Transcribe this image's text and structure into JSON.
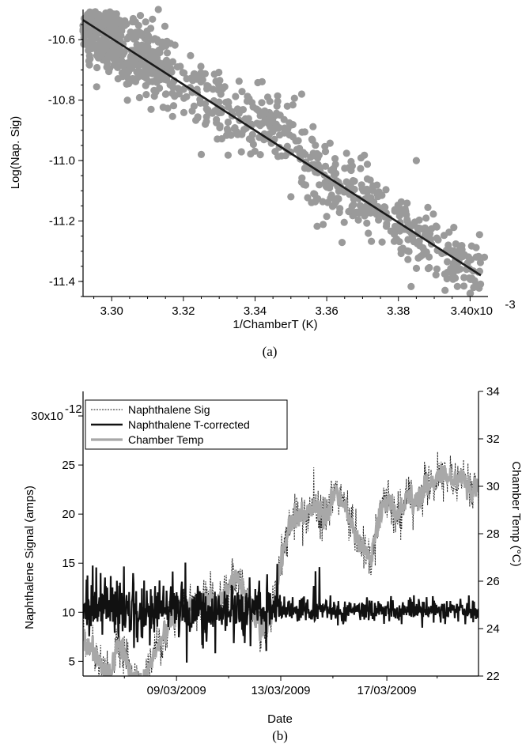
{
  "colors": {
    "scatter": "#9a9a9a",
    "fit": "#1a1a1a",
    "sig": "#222222",
    "tcorr": "#111111",
    "temp": "#a8a8a8"
  },
  "chart_data": [
    {
      "type": "scatter",
      "caption": "(a)",
      "xlabel": "1/ChamberT (K)",
      "ylabel": "Log(Nap. Sig)",
      "xlim": [
        3.292,
        3.405
      ],
      "ylim": [
        -11.45,
        -10.5
      ],
      "x_ticks": [
        3.3,
        3.32,
        3.34,
        3.36,
        3.38,
        3.4
      ],
      "x_tick_labels": [
        "3.30",
        "3.32",
        "3.34",
        "3.36",
        "3.38",
        "3.40x10"
      ],
      "x_multiplier_exp": "-3",
      "y_ticks": [
        -10.6,
        -10.8,
        -11.0,
        -11.2,
        -11.4
      ],
      "y_tick_labels": [
        "-10.6",
        "-10.8",
        "-11.0",
        "-11.2",
        "-11.4"
      ],
      "fit": {
        "x": [
          3.292,
          3.403
        ],
        "y": [
          -10.535,
          -11.38
        ]
      },
      "scatter_band": {
        "x_range": [
          3.292,
          3.403
        ],
        "n": 950,
        "spread": 0.06
      },
      "points": [
        [
          3.308,
          -10.52
        ],
        [
          3.313,
          -10.5
        ],
        [
          3.306,
          -10.53
        ],
        [
          3.349,
          -10.82
        ],
        [
          3.353,
          -10.78
        ],
        [
          3.347,
          -10.85
        ],
        [
          3.385,
          -11.0
        ],
        [
          3.376,
          -11.16
        ],
        [
          3.399,
          -11.36
        ],
        [
          3.4,
          -11.44
        ],
        [
          3.401,
          -11.42
        ],
        [
          3.339,
          -10.88
        ],
        [
          3.325,
          -10.98
        ],
        [
          3.404,
          -11.32
        ],
        [
          3.35,
          -11.12
        ]
      ]
    },
    {
      "type": "line",
      "caption": "(b)",
      "xlabel": "Date",
      "ylabel_left": "Naphthalene Signal (amps)",
      "ylabel_right": "Chamber Temp (°C)",
      "xlim": [
        0,
        22
      ],
      "x_ticks": [
        5.2,
        11.0,
        16.9
      ],
      "x_tick_labels": [
        "09/03/2009",
        "13/03/2009",
        "17/03/2009"
      ],
      "y_left_lim": [
        3.5,
        32.5
      ],
      "y_left_ticks": [
        5,
        10,
        15,
        20,
        25,
        30
      ],
      "y_left_tick_labels": [
        "5",
        "10",
        "15",
        "20",
        "25",
        "30x10"
      ],
      "y_left_multiplier_exp": "-12",
      "y_right_lim": [
        22,
        34
      ],
      "y_right_ticks": [
        22,
        24,
        26,
        28,
        30,
        32,
        34
      ],
      "y_right_tick_labels": [
        "22",
        "24",
        "26",
        "28",
        "30",
        "32",
        "34"
      ],
      "legend": [
        {
          "label": "Naphthalene Sig",
          "style": "dotted"
        },
        {
          "label": "Naphthalene T-corrected",
          "style": "solid-black"
        },
        {
          "label": "Chamber Temp",
          "style": "solid-gray"
        }
      ],
      "temp_profile": {
        "x": [
          0,
          0.5,
          1.0,
          1.5,
          2.0,
          2.5,
          3.0,
          3.5,
          4.0,
          4.5,
          5.0,
          5.5,
          6.0,
          6.5,
          7.0,
          7.5,
          8.0,
          8.5,
          9.0,
          9.5,
          10.0,
          10.5,
          11.0,
          11.5,
          12.0,
          12.5,
          13.0,
          13.5,
          14.0,
          14.5,
          15.0,
          15.5,
          16.0,
          16.5,
          17.0,
          17.5,
          18.0,
          18.5,
          19.0,
          19.5,
          20.0,
          20.5,
          21.0,
          21.5,
          22.0
        ],
        "y": [
          23.8,
          23.2,
          22.3,
          22.0,
          23.5,
          22.5,
          21.8,
          22.0,
          23.0,
          23.8,
          24.3,
          24.8,
          25.0,
          24.9,
          25.3,
          25.0,
          25.8,
          26.2,
          25.5,
          24.5,
          24.0,
          24.6,
          26.5,
          28.4,
          28.7,
          28.9,
          29.1,
          28.6,
          29.8,
          29.3,
          28.2,
          27.5,
          27.0,
          28.8,
          29.5,
          28.7,
          29.6,
          29.3,
          29.9,
          30.2,
          30.6,
          30.3,
          30.4,
          29.9,
          30.0
        ]
      },
      "tcorr_level": 10.2
    }
  ]
}
